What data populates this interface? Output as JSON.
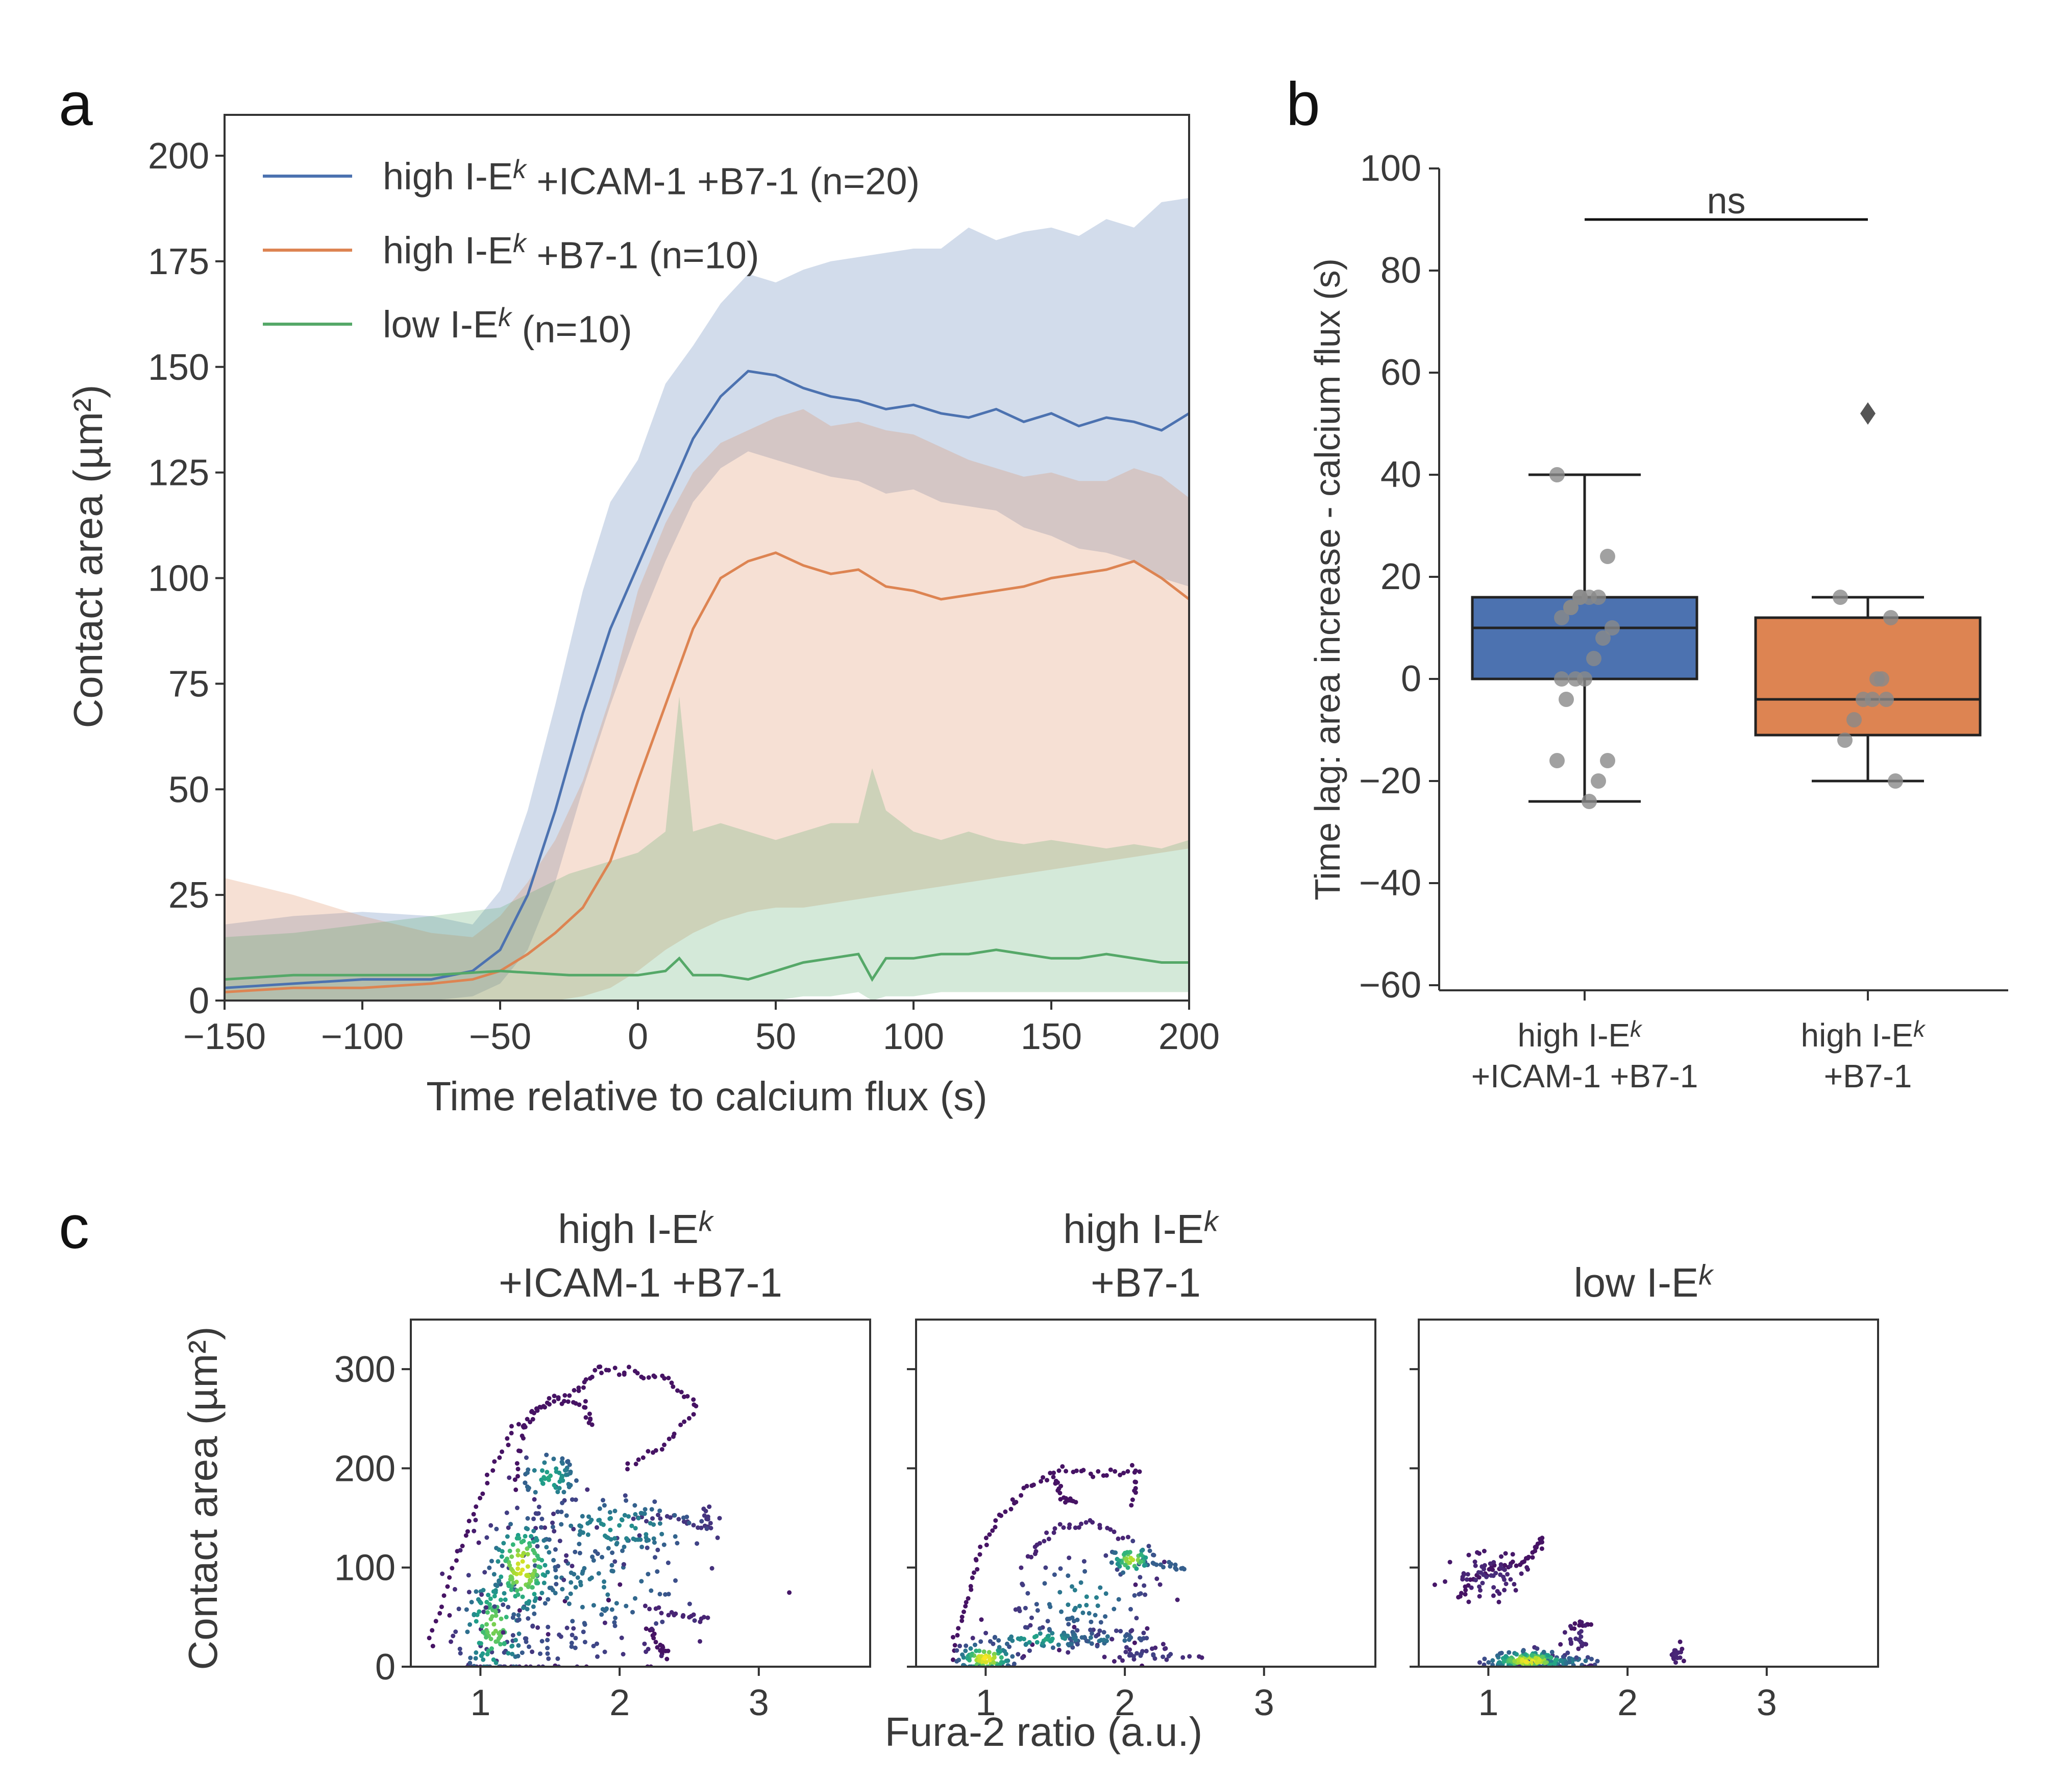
{
  "panel_labels": {
    "a": "a",
    "b": "b",
    "c": "c"
  },
  "colors": {
    "blue": "#4c72b0",
    "orange": "#dd8452",
    "green": "#55a868",
    "box_blue": "#4c72b0",
    "box_orange": "#dd8452",
    "gray_points": "#8a8a8a"
  },
  "chart_data": [
    {
      "id": "a",
      "type": "line",
      "xlabel": "Time relative to calcium flux (s)",
      "ylabel": "Contact area (µm²)",
      "xlim": [
        -150,
        200
      ],
      "ylim": [
        0,
        210
      ],
      "xticks": [
        -150,
        -100,
        -50,
        0,
        50,
        100,
        150,
        200
      ],
      "xtick_labels": [
        "−150",
        "−100",
        "−50",
        "0",
        "50",
        "100",
        "150",
        "200"
      ],
      "yticks": [
        0,
        25,
        50,
        75,
        100,
        125,
        150,
        175,
        200
      ],
      "ytick_labels": [
        "0",
        "25",
        "50",
        "75",
        "100",
        "125",
        "150",
        "175",
        "200"
      ],
      "legend": {
        "placement": "top-left",
        "entries": [
          {
            "prefix": "high I-E",
            "sup": "k",
            "suffix": " +ICAM-1 +B7-1 (n=20)",
            "color_key": "blue"
          },
          {
            "prefix": "high I-E",
            "sup": "k",
            "suffix": " +B7-1 (n=10)",
            "color_key": "orange"
          },
          {
            "prefix": "low I-E",
            "sup": "k",
            "suffix": " (n=10)",
            "color_key": "green"
          }
        ]
      },
      "series": [
        {
          "name": "high I-Ek +ICAM-1 +B7-1 (n=20)",
          "color_key": "blue",
          "x": [
            -150,
            -125,
            -100,
            -75,
            -60,
            -50,
            -40,
            -30,
            -20,
            -10,
            0,
            10,
            20,
            30,
            40,
            50,
            60,
            70,
            80,
            90,
            100,
            110,
            120,
            130,
            140,
            150,
            160,
            170,
            180,
            190,
            200
          ],
          "y": [
            3,
            4,
            5,
            5,
            7,
            12,
            25,
            45,
            68,
            88,
            103,
            118,
            133,
            143,
            149,
            148,
            145,
            143,
            142,
            140,
            141,
            139,
            138,
            140,
            137,
            139,
            136,
            138,
            137,
            135,
            139
          ],
          "lower": [
            0,
            0,
            0,
            0,
            1,
            4,
            12,
            28,
            50,
            70,
            88,
            104,
            118,
            126,
            130,
            128,
            126,
            124,
            123,
            120,
            121,
            118,
            117,
            116,
            112,
            110,
            107,
            106,
            104,
            100,
            98
          ],
          "upper": [
            18,
            20,
            21,
            20,
            18,
            26,
            45,
            70,
            97,
            118,
            128,
            146,
            155,
            165,
            172,
            170,
            173,
            175,
            176,
            177,
            178,
            178,
            183,
            180,
            182,
            183,
            181,
            185,
            183,
            189,
            190
          ]
        },
        {
          "name": "high I-Ek +B7-1 (n=10)",
          "color_key": "orange",
          "x": [
            -150,
            -125,
            -100,
            -75,
            -60,
            -50,
            -40,
            -30,
            -20,
            -10,
            0,
            10,
            20,
            30,
            40,
            50,
            60,
            70,
            80,
            90,
            100,
            110,
            120,
            130,
            140,
            150,
            160,
            170,
            180,
            190,
            200
          ],
          "y": [
            2,
            3,
            3,
            4,
            5,
            7,
            11,
            16,
            22,
            33,
            52,
            70,
            88,
            100,
            104,
            106,
            103,
            101,
            102,
            98,
            97,
            95,
            96,
            97,
            98,
            100,
            101,
            102,
            104,
            100,
            95
          ],
          "lower": [
            0,
            0,
            0,
            0,
            0,
            0,
            0,
            0,
            1,
            3,
            7,
            12,
            16,
            19,
            21,
            22,
            22,
            23,
            24,
            25,
            26,
            27,
            28,
            29,
            30,
            31,
            32,
            33,
            34,
            35,
            36
          ],
          "upper": [
            29,
            25,
            20,
            16,
            15,
            20,
            28,
            38,
            52,
            72,
            97,
            113,
            125,
            132,
            135,
            138,
            140,
            136,
            137,
            135,
            134,
            131,
            128,
            126,
            124,
            125,
            123,
            123,
            126,
            124,
            119
          ]
        },
        {
          "name": "low I-Ek (n=10)",
          "color_key": "green",
          "x": [
            -150,
            -125,
            -100,
            -75,
            -50,
            -25,
            0,
            10,
            15,
            20,
            30,
            40,
            50,
            60,
            70,
            80,
            85,
            90,
            100,
            110,
            120,
            130,
            140,
            150,
            160,
            170,
            180,
            190,
            200
          ],
          "y": [
            5,
            6,
            6,
            6,
            7,
            6,
            6,
            7,
            10,
            6,
            6,
            5,
            7,
            9,
            10,
            11,
            5,
            10,
            10,
            11,
            11,
            12,
            11,
            10,
            10,
            11,
            10,
            9,
            9
          ],
          "lower": [
            0,
            0,
            0,
            0,
            0,
            0,
            0,
            0,
            0,
            0,
            0,
            0,
            0,
            1,
            1,
            2,
            0,
            1,
            1,
            2,
            2,
            2,
            2,
            2,
            2,
            2,
            2,
            2,
            2
          ],
          "upper": [
            15,
            16,
            18,
            20,
            22,
            30,
            35,
            40,
            72,
            40,
            42,
            40,
            38,
            40,
            42,
            42,
            55,
            45,
            40,
            38,
            40,
            38,
            37,
            38,
            37,
            36,
            37,
            36,
            38
          ]
        }
      ]
    },
    {
      "id": "b",
      "type": "box",
      "ylabel": "Time lag: area increase - calcium flux (s)",
      "ylim": [
        -60,
        100
      ],
      "yticks": [
        -60,
        -40,
        -20,
        0,
        20,
        40,
        60,
        80,
        100
      ],
      "ytick_labels": [
        "−60",
        "−40",
        "−20",
        "0",
        "20",
        "40",
        "60",
        "80",
        "100"
      ],
      "significance": "ns",
      "significance_y": 90,
      "groups": [
        {
          "label_line1": "high I-E",
          "label_sup": "k",
          "label_line2": "+ICAM-1 +B7-1",
          "color_key": "box_blue",
          "q1": 0,
          "median": 10,
          "q3": 16,
          "whisker_low": -24,
          "whisker_high": 40,
          "outliers": [],
          "points": [
            40,
            24,
            16,
            16,
            16,
            14,
            12,
            10,
            8,
            4,
            0,
            0,
            -4,
            -16,
            -16,
            -20,
            -24,
            16,
            14,
            0
          ]
        },
        {
          "label_line1": "high I-E",
          "label_sup": "k",
          "label_line2": "+B7-1",
          "color_key": "box_orange",
          "q1": -11,
          "median": -4,
          "q3": 12,
          "whisker_low": -20,
          "whisker_high": 16,
          "outliers": [
            52
          ],
          "points": [
            16,
            12,
            0,
            -4,
            -4,
            -8,
            -12,
            -20,
            -4,
            0
          ]
        }
      ]
    },
    {
      "id": "c",
      "type": "scatter",
      "xlabel": "Fura-2 ratio (a.u.)",
      "ylabel": "Contact area (µm²)",
      "xlim": [
        0.5,
        3.8
      ],
      "ylim": [
        0,
        350
      ],
      "xticks": [
        1,
        2,
        3
      ],
      "xtick_labels": [
        "1",
        "2",
        "3"
      ],
      "yticks": [
        0,
        100,
        200,
        300
      ],
      "ytick_labels": [
        "0",
        "100",
        "200",
        "300"
      ],
      "colormap": "viridis (point density)",
      "panels": [
        {
          "title_line1": "high I-E",
          "title_sup": "k",
          "title_line2": "+ICAM-1 +B7-1",
          "clusters": [
            {
              "x": 1.3,
              "y": 100,
              "sx": 0.12,
              "sy": 25,
              "n": 150,
              "density": 0.9
            },
            {
              "x": 1.1,
              "y": 40,
              "sx": 0.12,
              "sy": 30,
              "n": 120,
              "density": 0.75
            },
            {
              "x": 1.5,
              "y": 190,
              "sx": 0.12,
              "sy": 15,
              "n": 60,
              "density": 0.55
            },
            {
              "x": 2.0,
              "y": 140,
              "sx": 0.35,
              "sy": 18,
              "n": 110,
              "density": 0.45
            },
            {
              "x": 1.8,
              "y": 80,
              "sx": 0.45,
              "sy": 30,
              "n": 110,
              "density": 0.35
            },
            {
              "x": 1.5,
              "y": 20,
              "sx": 0.4,
              "sy": 15,
              "n": 60,
              "density": 0.2
            }
          ],
          "paths": [
            {
              "points": [
                [
                  0.62,
                  20
                ],
                [
                  0.8,
                  100
                ],
                [
                  1.0,
                  170
                ],
                [
                  1.2,
                  230
                ],
                [
                  1.4,
                  260
                ],
                [
                  1.7,
                  280
                ],
                [
                  1.85,
                  300
                ],
                [
                  2.1,
                  295
                ],
                [
                  2.35,
                  290
                ],
                [
                  2.55,
                  260
                ],
                [
                  2.3,
                  220
                ],
                [
                  2.0,
                  200
                ]
              ],
              "density": 0.05
            },
            {
              "points": [
                [
                  1.25,
                  180
                ],
                [
                  1.3,
                  240
                ],
                [
                  1.5,
                  270
                ],
                [
                  1.75,
                  265
                ],
                [
                  1.8,
                  240
                ]
              ],
              "density": 0.05
            },
            {
              "points": [
                [
                  2.1,
                  150
                ],
                [
                  2.4,
                  150
                ],
                [
                  2.65,
                  140
                ],
                [
                  2.6,
                  160
                ]
              ],
              "density": 0.15
            },
            {
              "points": [
                [
                  2.2,
                  60
                ],
                [
                  2.45,
                  50
                ],
                [
                  2.65,
                  50
                ]
              ],
              "density": 0.1
            },
            {
              "points": [
                [
                  2.2,
                  40
                ],
                [
                  2.3,
                  20
                ],
                [
                  2.35,
                  10
                ]
              ],
              "density": 0.05
            }
          ]
        },
        {
          "title_line1": "high I-E",
          "title_sup": "k",
          "title_line2": "+B7-1",
          "clusters": [
            {
              "x": 1.0,
              "y": 8,
              "sx": 0.1,
              "sy": 8,
              "n": 100,
              "density": 0.95
            },
            {
              "x": 1.4,
              "y": 28,
              "sx": 0.2,
              "sy": 6,
              "n": 70,
              "density": 0.55
            },
            {
              "x": 2.05,
              "y": 108,
              "sx": 0.08,
              "sy": 8,
              "n": 50,
              "density": 0.85
            },
            {
              "x": 1.7,
              "y": 70,
              "sx": 0.25,
              "sy": 20,
              "n": 70,
              "density": 0.4
            },
            {
              "x": 1.85,
              "y": 28,
              "sx": 0.2,
              "sy": 5,
              "n": 45,
              "density": 0.35
            },
            {
              "x": 2.2,
              "y": 12,
              "sx": 0.2,
              "sy": 4,
              "n": 35,
              "density": 0.15
            }
          ],
          "paths": [
            {
              "points": [
                [
                  0.75,
                  10
                ],
                [
                  0.85,
                  60
                ],
                [
                  0.95,
                  110
                ],
                [
                  1.1,
                  150
                ],
                [
                  1.3,
                  180
                ],
                [
                  1.55,
                  200
                ],
                [
                  1.85,
                  195
                ],
                [
                  2.1,
                  198
                ],
                [
                  2.05,
                  160
                ]
              ],
              "density": 0.05
            },
            {
              "points": [
                [
                  1.3,
                  110
                ],
                [
                  1.5,
                  140
                ],
                [
                  1.75,
                  145
                ],
                [
                  2.0,
                  130
                ]
              ],
              "density": 0.1
            },
            {
              "points": [
                [
                  2.1,
                  105
                ],
                [
                  2.3,
                  102
                ],
                [
                  2.45,
                  100
                ]
              ],
              "density": 0.3
            },
            {
              "points": [
                [
                  1.5,
                  190
                ],
                [
                  1.55,
                  170
                ],
                [
                  1.65,
                  165
                ]
              ],
              "density": 0.05
            }
          ]
        },
        {
          "title_line1": "low I-E",
          "title_sup": "k",
          "title_line2": "",
          "clusters": [
            {
              "x": 1.3,
              "y": 6,
              "sx": 0.15,
              "sy": 5,
              "n": 150,
              "density": 0.95
            },
            {
              "x": 1.55,
              "y": 5,
              "sx": 0.15,
              "sy": 3,
              "n": 50,
              "density": 0.45
            },
            {
              "x": 1.0,
              "y": 90,
              "sx": 0.15,
              "sy": 12,
              "n": 60,
              "density": 0.08
            },
            {
              "x": 1.65,
              "y": 30,
              "sx": 0.08,
              "sy": 8,
              "n": 20,
              "density": 0.08
            },
            {
              "x": 2.35,
              "y": 12,
              "sx": 0.03,
              "sy": 7,
              "n": 15,
              "density": 0.06
            }
          ],
          "paths": [
            {
              "points": [
                [
                  0.78,
                  70
                ],
                [
                  0.9,
                  90
                ],
                [
                  1.05,
                  100
                ],
                [
                  1.25,
                  105
                ],
                [
                  1.35,
                  120
                ],
                [
                  1.4,
                  130
                ]
              ],
              "density": 0.05
            },
            {
              "points": [
                [
                  1.6,
                  40
                ],
                [
                  1.75,
                  45
                ]
              ],
              "density": 0.05
            }
          ]
        }
      ]
    }
  ]
}
